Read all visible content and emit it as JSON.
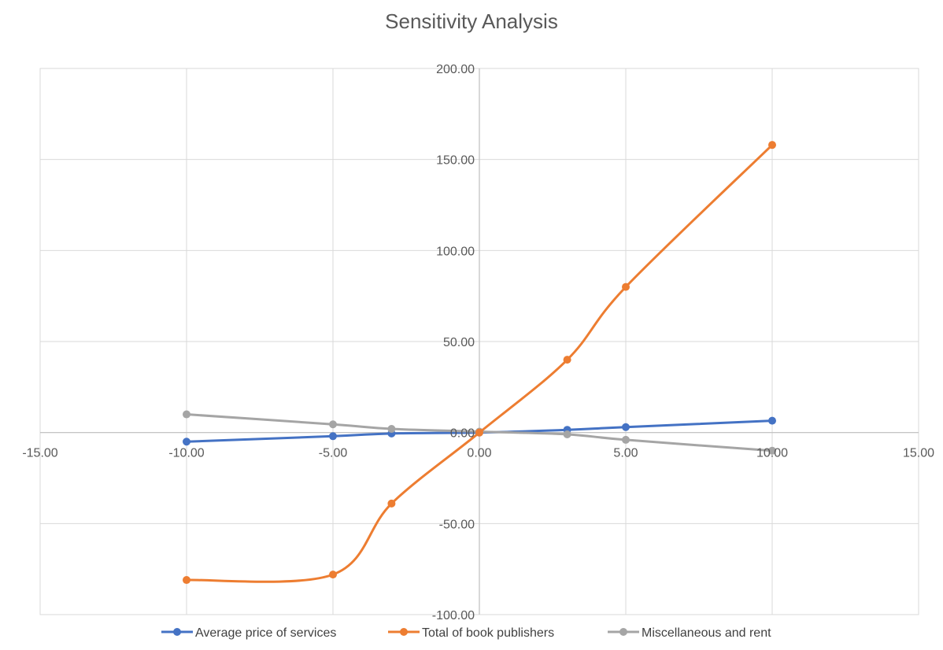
{
  "chart_data": {
    "type": "scatter",
    "title": "Sensitivity Analysis",
    "xlabel": "",
    "ylabel": "",
    "xlim": [
      -15,
      15
    ],
    "ylim": [
      -100,
      200
    ],
    "x_ticks": [
      -15,
      -10,
      -5,
      0,
      5,
      10,
      15
    ],
    "y_ticks": [
      -100,
      -50,
      0,
      50,
      100,
      150,
      200
    ],
    "x_tick_labels": [
      "-15.00",
      "-10.00",
      "-5.00",
      "0.00",
      "5.00",
      "10.00",
      "15.00"
    ],
    "y_tick_labels": [
      "-100.00",
      "-50.00",
      "0.00",
      "50.00",
      "100.00",
      "150.00",
      "200.00"
    ],
    "grid": true,
    "smoothed_lines": true,
    "legend_position": "bottom",
    "series": [
      {
        "name": "Average price of services",
        "color": "#4472C4",
        "x": [
          -10,
          -5,
          -3,
          0,
          3,
          5,
          10
        ],
        "y": [
          -5,
          -2,
          -0.5,
          0,
          1.5,
          3,
          6.5
        ]
      },
      {
        "name": "Total of book publishers",
        "color": "#ED7D31",
        "x": [
          -10,
          -5,
          -3,
          0,
          3,
          5,
          10
        ],
        "y": [
          -81,
          -78,
          -39,
          0,
          40,
          80,
          158
        ]
      },
      {
        "name": "Miscellaneous and rent",
        "color": "#A5A5A5",
        "x": [
          -10,
          -5,
          -3,
          0,
          3,
          5,
          10
        ],
        "y": [
          10,
          4.5,
          2,
          0.5,
          -1,
          -4,
          -10
        ]
      }
    ]
  }
}
